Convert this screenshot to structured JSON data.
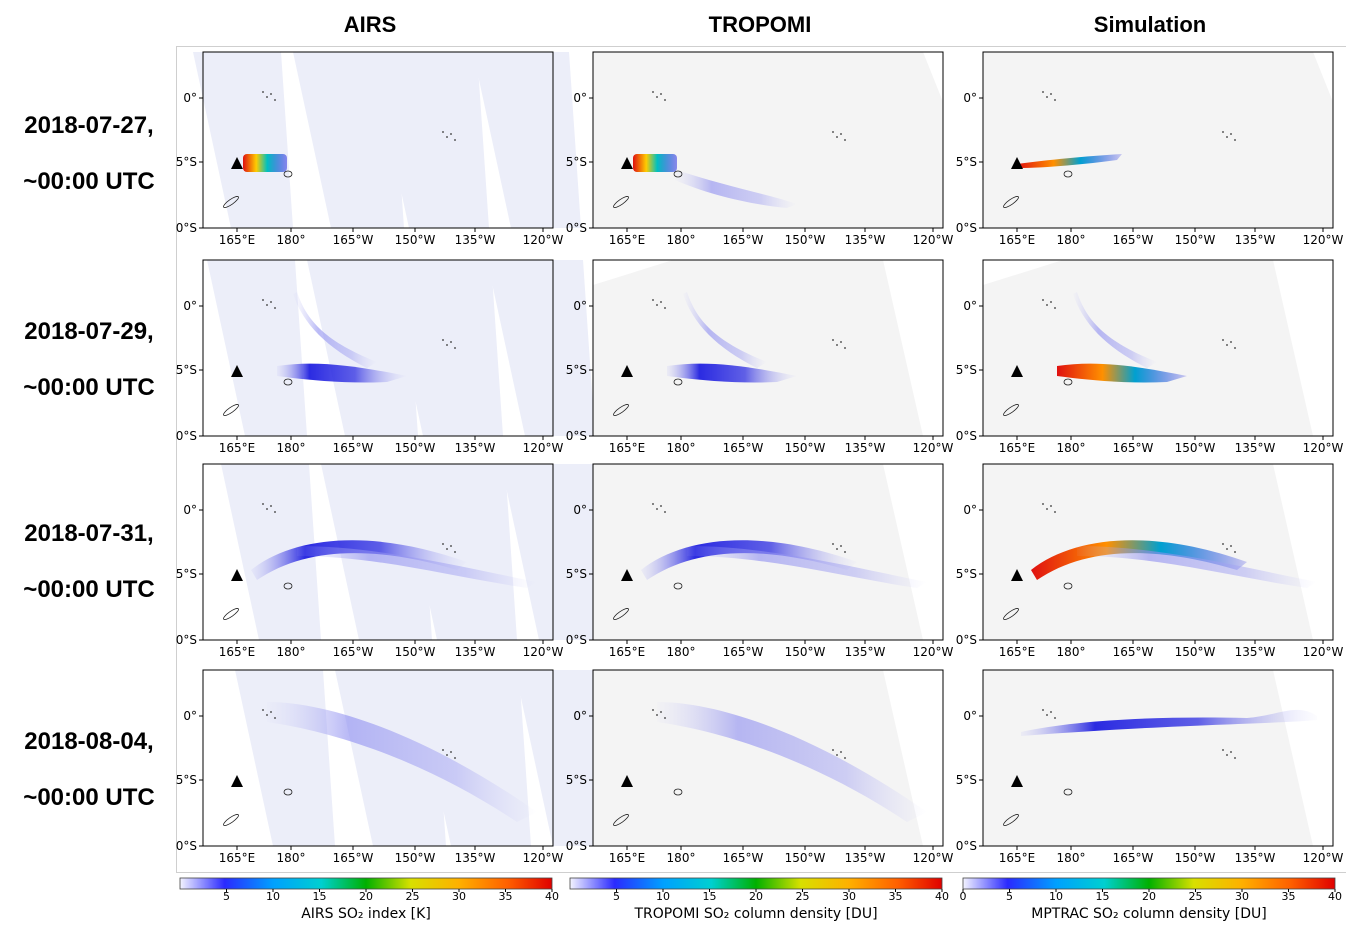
{
  "columns": [
    {
      "title": "AIRS"
    },
    {
      "title": "TROPOMI"
    },
    {
      "title": "Simulation"
    }
  ],
  "rows": [
    {
      "date": "2018-07-27,",
      "time": "~00:00 UTC"
    },
    {
      "date": "2018-07-29,",
      "time": "~00:00 UTC"
    },
    {
      "date": "2018-07-31,",
      "time": "~00:00 UTC"
    },
    {
      "date": "2018-08-04,",
      "time": "~00:00 UTC"
    }
  ],
  "map_axes": {
    "x_ticks": [
      "165°E",
      "180°",
      "165°W",
      "150°W",
      "135°W",
      "120°W"
    ],
    "y_ticks": [
      "0°",
      "5°S",
      "0°S"
    ]
  },
  "colorbars": [
    {
      "label": "AIRS SO₂ index [K]",
      "ticks": [
        "5",
        "10",
        "15",
        "20",
        "25",
        "30",
        "35",
        "40"
      ],
      "range": [
        0,
        40
      ]
    },
    {
      "label": "TROPOMI SO₂ column density [DU]",
      "ticks": [
        "5",
        "10",
        "15",
        "20",
        "25",
        "30",
        "35",
        "40"
      ],
      "range": [
        0,
        40
      ]
    },
    {
      "label": "MPTRAC SO₂ column density [DU]",
      "ticks": [
        "0",
        "5",
        "10",
        "15",
        "20",
        "25",
        "30",
        "35",
        "40"
      ],
      "range": [
        0,
        40
      ]
    }
  ],
  "colors": {
    "background_map": "#f4f4f4",
    "plume_low": "#c8c8f4",
    "plume_mid": "#2020e0",
    "plume_high": "#00c8c8",
    "plume_peak": "#e01010"
  },
  "chart_data": {
    "type": "heatmap",
    "panels_rows": 4,
    "panels_cols": 3,
    "x_tick_labels": [
      "165°E",
      "180°",
      "165°W",
      "150°W",
      "135°W",
      "120°W"
    ],
    "y_tick_labels": [
      "0°",
      "5°S",
      "0°S"
    ],
    "colorbar_range": [
      0,
      40
    ]
  }
}
